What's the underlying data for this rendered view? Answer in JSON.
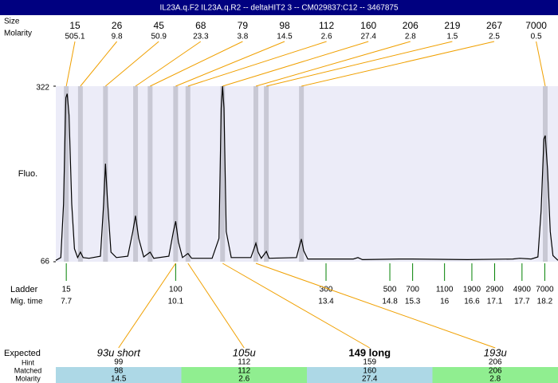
{
  "title": "IL23A.q.F2 IL23A.q.R2 -- deltaHIT2 3 -- CM029837:C12 -- 3467875",
  "chart_data": {
    "type": "line",
    "y_label": "Fluo.",
    "ylim": [
      66,
      322
    ],
    "yticks": [
      66,
      322
    ],
    "xlim": [
      7.47,
      18.49
    ],
    "color": "#000000",
    "peaks": {
      "size_label": "Size",
      "molarity_label": "Molarity",
      "sizes": [
        15,
        26,
        45,
        68,
        79,
        98,
        112,
        160,
        206,
        219,
        267,
        7000
      ],
      "molarity": [
        505.1,
        9.8,
        50.9,
        23.3,
        3.8,
        14.5,
        2.6,
        27.4,
        2.8,
        1.5,
        2.5,
        0.5
      ],
      "times": [
        7.7,
        8.01,
        8.56,
        9.22,
        9.54,
        10.1,
        10.37,
        11.13,
        11.86,
        12.09,
        12.86,
        18.21
      ]
    },
    "ladder": {
      "label": "Ladder",
      "time_label": "Mig. time",
      "sizes": [
        15,
        100,
        300,
        500,
        700,
        1100,
        1900,
        2900,
        4900,
        7000
      ],
      "times": [
        7.7,
        10.1,
        13.4,
        14.8,
        15.3,
        16,
        16.6,
        17.1,
        17.7,
        18.2
      ]
    },
    "trace": {
      "x": [
        7.47,
        7.58,
        7.64,
        7.69,
        7.72,
        7.76,
        7.82,
        7.88,
        7.95,
        8.01,
        8.07,
        8.2,
        8.45,
        8.52,
        8.56,
        8.6,
        8.68,
        8.8,
        9.05,
        9.16,
        9.22,
        9.29,
        9.4,
        9.54,
        9.62,
        9.95,
        10.05,
        10.1,
        10.16,
        10.25,
        10.37,
        10.45,
        10.9,
        11.05,
        11.1,
        11.13,
        11.16,
        11.21,
        11.32,
        11.75,
        11.82,
        11.86,
        11.91,
        11.98,
        12.09,
        12.15,
        12.75,
        12.82,
        12.86,
        12.91,
        13.0,
        13.5,
        14.0,
        14.1,
        14.2,
        15.0,
        15.3,
        16.5,
        17.5,
        17.65,
        17.9,
        18.05,
        18.12,
        18.18,
        18.21,
        18.26,
        18.32,
        18.38,
        18.49
      ],
      "values": [
        68,
        72,
        150,
        305,
        311,
        280,
        150,
        85,
        72,
        80,
        72,
        71,
        74,
        150,
        209,
        160,
        80,
        72,
        74,
        110,
        133,
        100,
        73,
        80,
        71,
        74,
        110,
        125,
        95,
        72,
        78,
        71,
        71,
        100,
        290,
        322,
        290,
        110,
        72,
        72,
        85,
        93,
        80,
        71,
        81,
        71,
        72,
        90,
        99,
        82,
        70,
        70,
        70,
        72,
        69,
        70,
        70,
        69,
        70,
        71,
        70,
        73,
        140,
        245,
        250,
        200,
        110,
        75,
        68
      ]
    }
  },
  "expected": {
    "label": "Expected",
    "hint_label": "Hint",
    "matched_label": "Matched",
    "molarity_label": "Molarity",
    "names": [
      "93u short",
      "105u",
      "149 long",
      "193u"
    ],
    "hint": [
      99,
      112,
      159,
      206
    ],
    "matched": [
      98,
      112,
      160,
      206
    ],
    "molarity": [
      14.5,
      2.6,
      27.4,
      2.8
    ]
  }
}
